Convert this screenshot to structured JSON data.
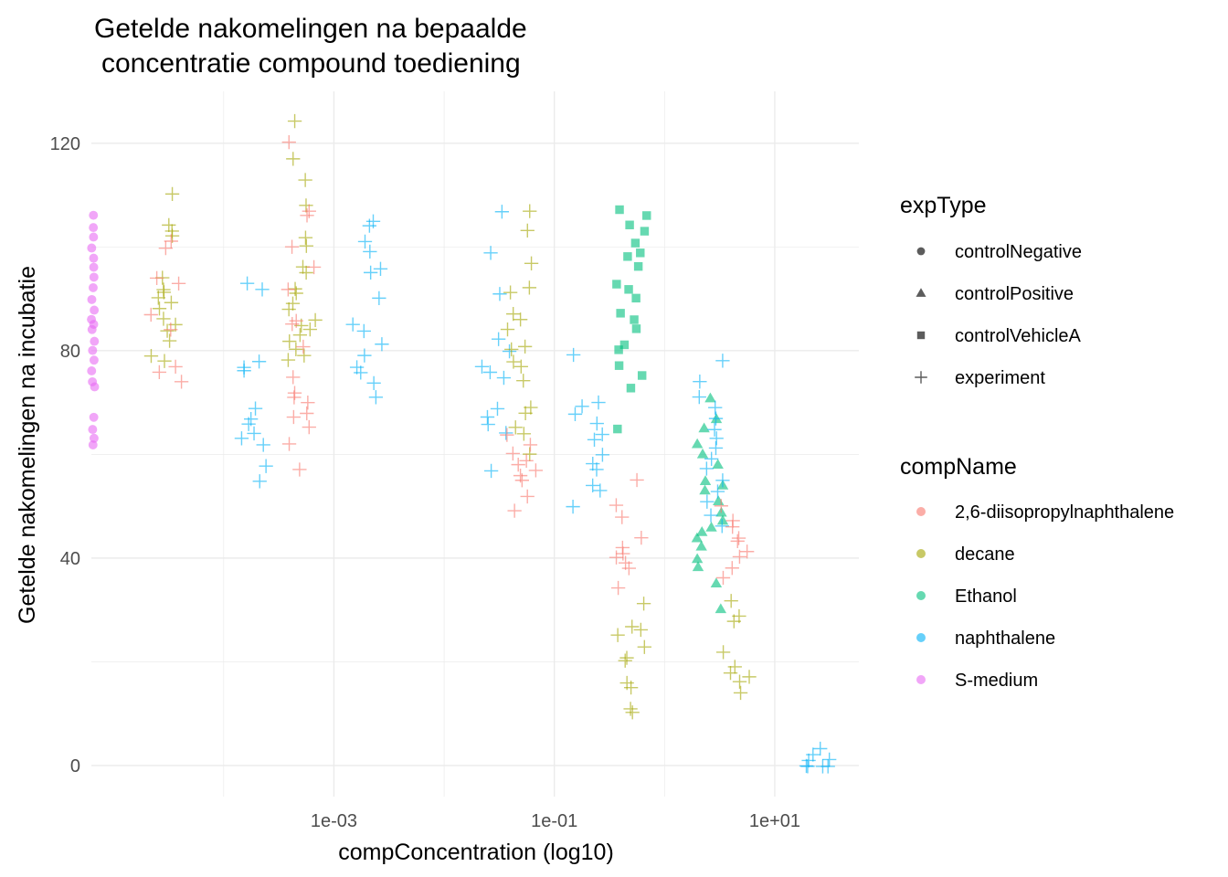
{
  "chart_data": {
    "type": "scatter",
    "title_lines": [
      "Getelde nakomelingen na bepaalde",
      "concentratie compound toediening"
    ],
    "xlabel": "compConcentration (log10)",
    "ylabel": "Getelde nakomelingen na incubatie",
    "x_scale": "log10",
    "xlim": [
      6.3e-06,
      58
    ],
    "ylim": [
      -6,
      130
    ],
    "x_ticks": [
      0.001,
      0.1,
      10
    ],
    "x_tick_labels": [
      "1e-03",
      "1e-01",
      "1e+01"
    ],
    "y_ticks": [
      0,
      40,
      80,
      120
    ],
    "y_tick_labels": [
      "0",
      "40",
      "80",
      "120"
    ],
    "grid": true,
    "legend_position": "right",
    "legends": {
      "shape": {
        "title": "exptype_title",
        "items": [
          {
            "label": "controlNegative",
            "shape": "circle"
          },
          {
            "label": "controlPositive",
            "shape": "triangle"
          },
          {
            "label": "controlVehicleA",
            "shape": "square"
          },
          {
            "label": "experiment",
            "shape": "plus"
          }
        ]
      },
      "color": {
        "title": "compName",
        "items": [
          {
            "label": "2,6-diisopropylnaphthalene",
            "color": "#F8766D"
          },
          {
            "label": "decane",
            "color": "#A3A500"
          },
          {
            "label": "Ethanol",
            "color": "#00BF7D"
          },
          {
            "label": "naphthalene",
            "color": "#00B0F6"
          },
          {
            "label": "S-medium",
            "color": "#E76BF3"
          }
        ]
      }
    },
    "series": [
      {
        "name": "S-medium",
        "expType": "controlNegative",
        "color": "#E76BF3",
        "shape": "circle",
        "x": 6.5e-06,
        "y": [
          106,
          104,
          102,
          100,
          98,
          96,
          94,
          92,
          90,
          88,
          86,
          85,
          84,
          82,
          80,
          78,
          76,
          74,
          73,
          67,
          65,
          63,
          62
        ]
      },
      {
        "name": "decane",
        "expType": "experiment",
        "color": "#A3A500",
        "shape": "plus",
        "x": 3e-05,
        "y": [
          110,
          104,
          103,
          102,
          94,
          92,
          91,
          90,
          89,
          88,
          86,
          85,
          84,
          82,
          79,
          78
        ]
      },
      {
        "name": "2,6-diisopropylnaphthalene",
        "expType": "experiment",
        "color": "#F8766D",
        "shape": "plus",
        "x": 3e-05,
        "y": [
          101,
          100,
          94,
          93,
          87,
          84,
          77,
          76,
          74
        ]
      },
      {
        "name": "naphthalene",
        "expType": "experiment",
        "color": "#00B0F6",
        "shape": "plus",
        "x": 0.0002,
        "y": [
          93,
          92,
          78,
          77,
          76,
          69,
          67,
          66,
          64,
          63,
          62,
          58,
          55
        ]
      },
      {
        "name": "decane",
        "expType": "experiment",
        "color": "#A3A500",
        "shape": "plus",
        "x": 0.0005,
        "y": [
          124,
          117,
          113,
          108,
          102,
          100,
          96,
          95,
          92,
          91,
          89,
          88,
          86,
          85,
          84,
          83,
          82,
          80,
          79,
          78
        ]
      },
      {
        "name": "2,6-diisopropylnaphthalene",
        "expType": "experiment",
        "color": "#F8766D",
        "shape": "plus",
        "x": 0.0005,
        "y": [
          120,
          107,
          106,
          100,
          96,
          92,
          86,
          85,
          81,
          75,
          72,
          71,
          70,
          68,
          67,
          65,
          62,
          57
        ]
      },
      {
        "name": "naphthalene",
        "expType": "experiment",
        "color": "#00B0F6",
        "shape": "plus",
        "x": 0.002,
        "y": [
          105,
          104,
          101,
          99,
          96,
          95,
          90,
          85,
          84,
          81,
          79,
          77,
          76,
          74,
          71
        ]
      },
      {
        "name": "naphthalene",
        "expType": "experiment",
        "color": "#00B0F6",
        "shape": "plus",
        "x": 0.03,
        "y": [
          107,
          99,
          91,
          82,
          80,
          77,
          76,
          75,
          69,
          67,
          66,
          64,
          57
        ]
      },
      {
        "name": "decane",
        "expType": "experiment",
        "color": "#A3A500",
        "shape": "plus",
        "x": 0.05,
        "y": [
          107,
          103,
          97,
          92,
          91,
          87,
          86,
          84,
          81,
          80,
          78,
          77,
          74,
          69,
          68,
          65,
          64,
          60
        ]
      },
      {
        "name": "2,6-diisopropylnaphthalene",
        "expType": "experiment",
        "color": "#F8766D",
        "shape": "plus",
        "x": 0.05,
        "y": [
          64,
          62,
          60,
          59,
          58,
          57,
          56,
          55,
          52,
          49
        ]
      },
      {
        "name": "naphthalene",
        "expType": "experiment",
        "color": "#00B0F6",
        "shape": "plus",
        "x": 0.2,
        "y": [
          79,
          70,
          69,
          68,
          66,
          64,
          63,
          60,
          58,
          57,
          54,
          53,
          50
        ]
      },
      {
        "name": "Ethanol",
        "expType": "controlVehicleA",
        "color": "#00BF7D",
        "shape": "square",
        "x": 0.5,
        "y": [
          107,
          106,
          104,
          103,
          101,
          99,
          98,
          96,
          93,
          92,
          90,
          87,
          86,
          84,
          81,
          80,
          77,
          75,
          73,
          65
        ]
      },
      {
        "name": "2,6-diisopropylnaphthalene",
        "expType": "experiment",
        "color": "#F8766D",
        "shape": "plus",
        "x": 0.5,
        "y": [
          55,
          50,
          48,
          44,
          42,
          41,
          40,
          39,
          38,
          34
        ]
      },
      {
        "name": "decane",
        "expType": "experiment",
        "color": "#A3A500",
        "shape": "plus",
        "x": 0.5,
        "y": [
          31,
          27,
          26,
          25,
          23,
          21,
          20,
          16,
          15,
          11,
          10
        ]
      },
      {
        "name": "Ethanol",
        "expType": "controlPositive",
        "color": "#00BF7D",
        "shape": "triangle",
        "x": 2.5,
        "y": [
          71,
          67,
          65,
          62,
          60,
          58,
          55,
          54,
          53,
          51,
          49,
          47,
          46,
          45,
          44,
          42,
          40,
          38,
          35,
          30
        ]
      },
      {
        "name": "naphthalene",
        "expType": "experiment",
        "color": "#00B0F6",
        "shape": "plus",
        "x": 2.5,
        "y": [
          78,
          74,
          71,
          69,
          67,
          65,
          63,
          61,
          59,
          57,
          55,
          53,
          51,
          48,
          46
        ]
      },
      {
        "name": "2,6-diisopropylnaphthalene",
        "expType": "experiment",
        "color": "#F8766D",
        "shape": "plus",
        "x": 4.5,
        "y": [
          50,
          47,
          46,
          44,
          43,
          41,
          40,
          38,
          36
        ]
      },
      {
        "name": "decane",
        "expType": "experiment",
        "color": "#A3A500",
        "shape": "plus",
        "x": 4.5,
        "y": [
          32,
          29,
          28,
          22,
          19,
          18,
          17,
          16,
          14
        ]
      },
      {
        "name": "naphthalene",
        "expType": "experiment",
        "color": "#00B0F6",
        "shape": "plus",
        "x": 25,
        "y": [
          3,
          2,
          1,
          1,
          0,
          0,
          0,
          0
        ]
      }
    ]
  },
  "text": {
    "exptype_title": "expType"
  }
}
